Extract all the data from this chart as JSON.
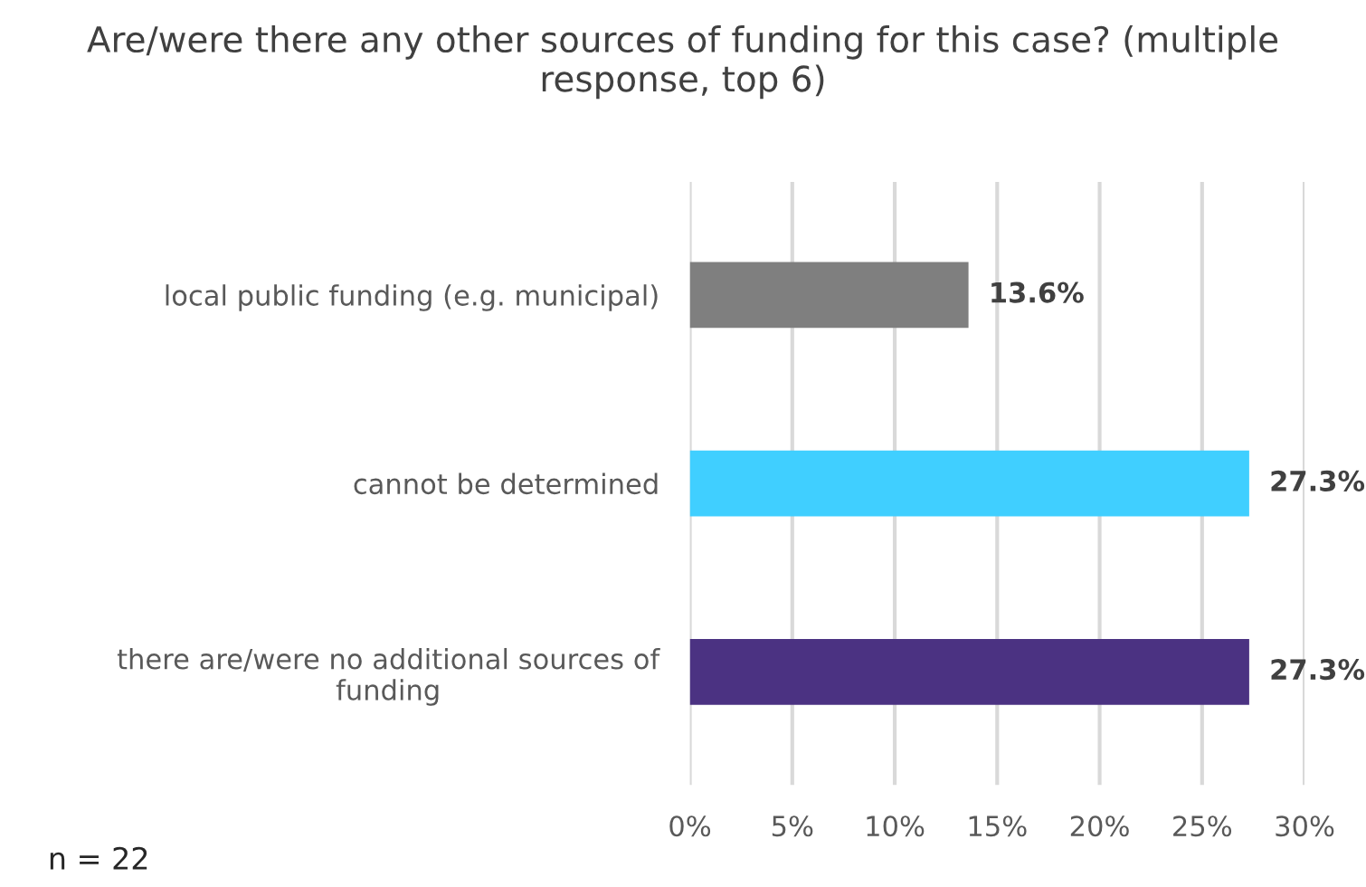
{
  "chart_data": {
    "type": "bar",
    "orientation": "horizontal",
    "title": "Are/were there any other sources of funding for this case? (multiple response, top 6)",
    "categories": [
      "local public funding (e.g. municipal)",
      "cannot be determined",
      "there are/were no additional sources of\nfunding"
    ],
    "values": [
      13.6,
      27.3,
      27.3
    ],
    "colors": [
      "#7f7f7f",
      "#40cfff",
      "#4b3282"
    ],
    "value_labels": [
      "13.6%",
      "27.3%",
      "27.3%"
    ],
    "xlim": [
      0,
      30
    ],
    "xticks": [
      {
        "value": 0,
        "label": "0%"
      },
      {
        "value": 5,
        "label": "5%"
      },
      {
        "value": 10,
        "label": "10%"
      },
      {
        "value": 15,
        "label": "15%"
      },
      {
        "value": 20,
        "label": "20%"
      },
      {
        "value": 25,
        "label": "25%"
      },
      {
        "value": 30,
        "label": "30%"
      }
    ],
    "grid": "x",
    "annotations": [
      "n = 22"
    ]
  }
}
